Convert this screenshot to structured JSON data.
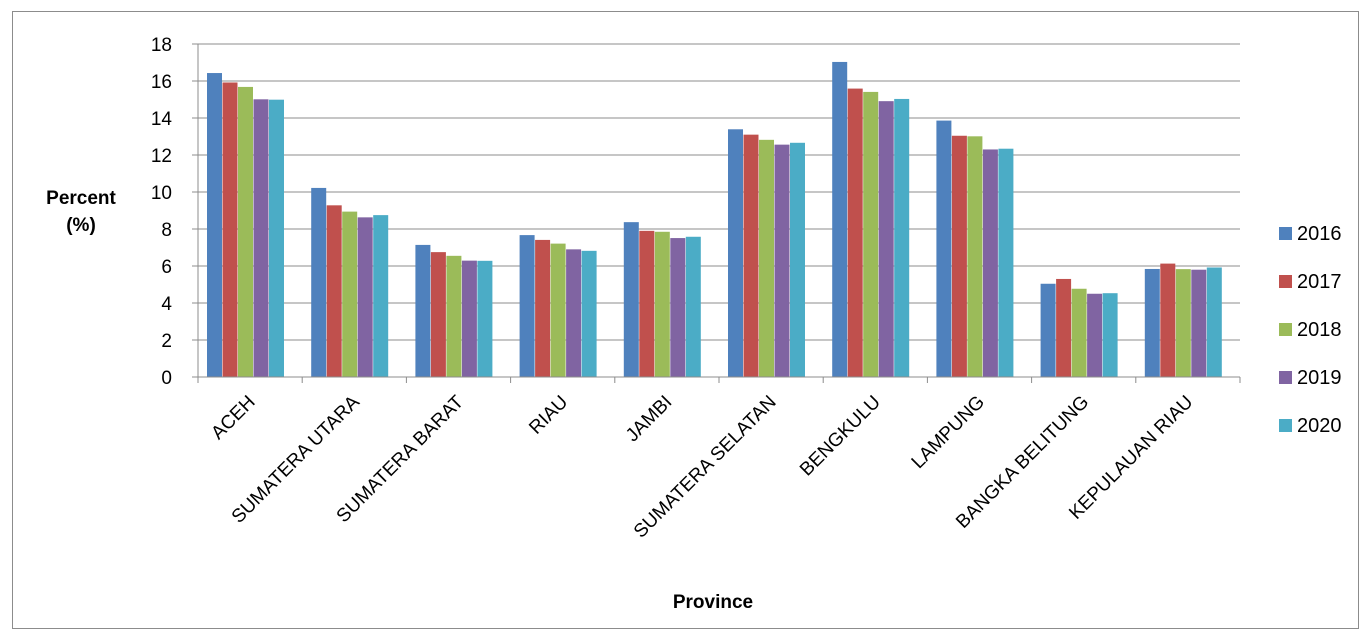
{
  "chart_data": {
    "type": "bar",
    "title": "",
    "xlabel": "Province",
    "ylabel_lines": [
      "Percent",
      "(%)"
    ],
    "ylim": [
      0,
      18
    ],
    "yticks": [
      "0",
      "2",
      "4",
      "6",
      "8",
      "10",
      "12",
      "14",
      "16",
      "18"
    ],
    "grid": true,
    "legend_position": "right",
    "categories": [
      "ACEH",
      "SUMATERA UTARA",
      "SUMATERA BARAT",
      "RIAU",
      "JAMBI",
      "SUMATERA SELATAN",
      "BENGKULU",
      "LAMPUNG",
      "BANGKA BELITUNG",
      "KEPULAUAN RIAU"
    ],
    "series": [
      {
        "name": "2016",
        "color": "#4f81bd",
        "values": [
          16.43,
          10.22,
          7.14,
          7.67,
          8.37,
          13.39,
          17.03,
          13.86,
          5.04,
          5.84
        ]
      },
      {
        "name": "2017",
        "color": "#c0504d",
        "values": [
          15.92,
          9.28,
          6.75,
          7.41,
          7.9,
          13.1,
          15.59,
          13.04,
          5.3,
          6.13
        ]
      },
      {
        "name": "2018",
        "color": "#9bbb59",
        "values": [
          15.68,
          8.94,
          6.55,
          7.21,
          7.85,
          12.82,
          15.41,
          13.01,
          4.77,
          5.83
        ]
      },
      {
        "name": "2019",
        "color": "#8064a2",
        "values": [
          15.01,
          8.63,
          6.29,
          6.9,
          7.51,
          12.56,
          14.91,
          12.3,
          4.5,
          5.8
        ]
      },
      {
        "name": "2020",
        "color": "#4bacc6",
        "values": [
          14.99,
          8.75,
          6.28,
          6.82,
          7.58,
          12.66,
          15.03,
          12.34,
          4.53,
          5.92
        ]
      }
    ]
  }
}
